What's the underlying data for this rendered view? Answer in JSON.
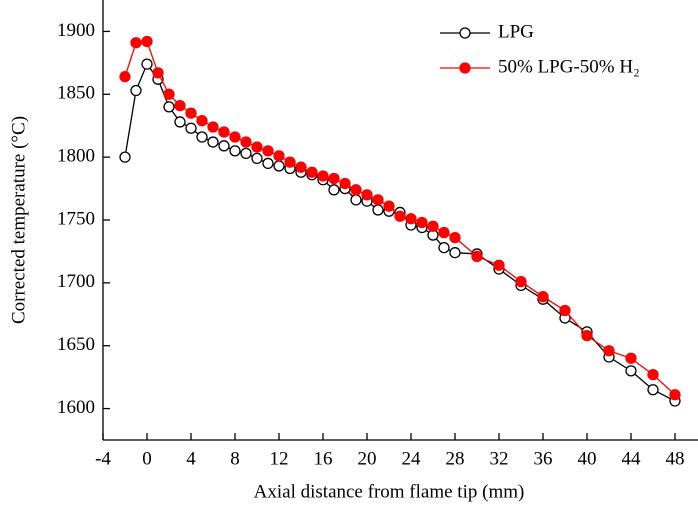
{
  "chart_data": {
    "type": "line",
    "xlabel": "Axial distance from flame tip (mm)",
    "ylabel": "Corrected temperature (°C)",
    "x": [
      -2,
      -1,
      0,
      1,
      2,
      3,
      4,
      5,
      6,
      7,
      8,
      9,
      10,
      11,
      12,
      13,
      14,
      15,
      16,
      17,
      18,
      19,
      20,
      21,
      22,
      23,
      24,
      25,
      26,
      27,
      28,
      30,
      32,
      34,
      36,
      38,
      40,
      42,
      44,
      46,
      48
    ],
    "series": [
      {
        "name": "LPG",
        "color": "#000000",
        "marker": "open",
        "values": [
          1800,
          1853,
          1874,
          1862,
          1840,
          1828,
          1823,
          1816,
          1812,
          1809,
          1805,
          1803,
          1799,
          1795,
          1793,
          1791,
          1788,
          1786,
          1782,
          1774,
          1775,
          1766,
          1765,
          1758,
          1757,
          1756,
          1746,
          1744,
          1738,
          1728,
          1724,
          1723,
          1711,
          1698,
          1687,
          1672,
          1661,
          1641,
          1630,
          1615,
          1606
        ]
      },
      {
        "name": "50% LPG-50% H₂",
        "color": "#ff0000",
        "marker": "filled",
        "values": [
          1864,
          1891,
          1892,
          1867,
          1850,
          1841,
          1835,
          1829,
          1824,
          1820,
          1816,
          1812,
          1808,
          1805,
          1801,
          1796,
          1792,
          1788,
          1785,
          1783,
          1779,
          1774,
          1770,
          1766,
          1761,
          1753,
          1751,
          1748,
          1745,
          1740,
          1736,
          1721,
          1714,
          1701,
          1689,
          1678,
          1658,
          1646,
          1640,
          1627,
          1611
        ]
      }
    ],
    "xlim": [
      -4,
      50
    ],
    "xticks": [
      -4,
      0,
      4,
      8,
      12,
      16,
      20,
      24,
      28,
      32,
      36,
      40,
      44,
      48
    ],
    "ylim": [
      1575,
      1925
    ],
    "yticks": [
      1600,
      1650,
      1700,
      1750,
      1800,
      1850,
      1900
    ],
    "legend": "upper right"
  }
}
